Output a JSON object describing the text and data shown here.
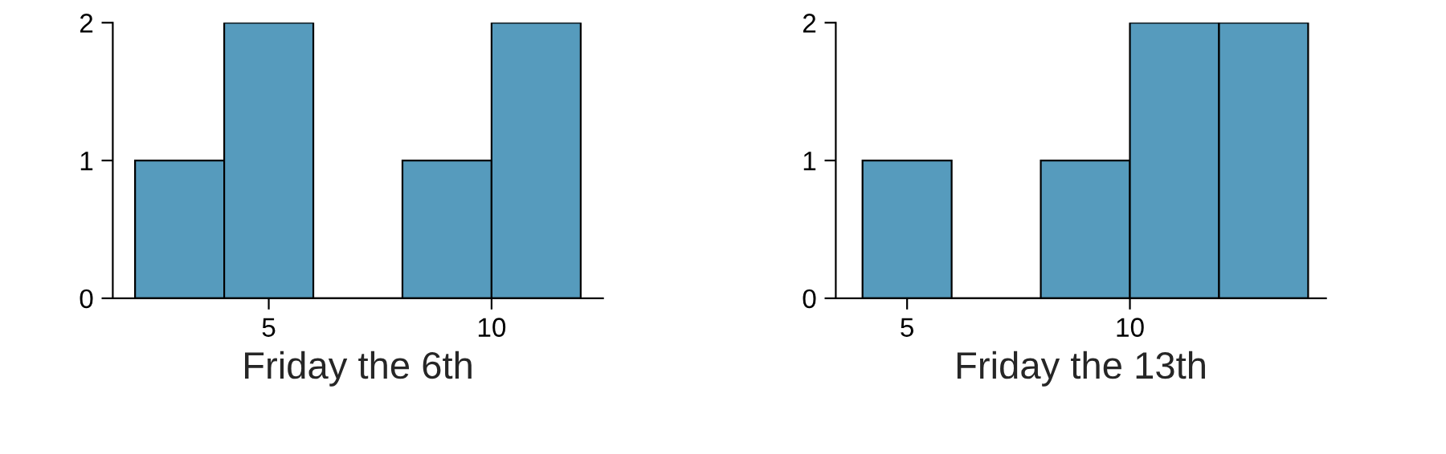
{
  "chart_data": [
    {
      "type": "histogram",
      "xlabel": "Friday the 6th",
      "bins": [
        2,
        4,
        6,
        8,
        10,
        12
      ],
      "values": [
        1,
        2,
        0,
        1,
        2
      ],
      "color": "#569bbd",
      "xlim": [
        1.5,
        12.5
      ],
      "xticks": [
        5,
        10
      ],
      "ylim": [
        0,
        2
      ],
      "yticks": [
        0,
        1,
        2
      ],
      "grid": false
    },
    {
      "type": "histogram",
      "xlabel": "Friday the 13th",
      "bins": [
        4,
        6,
        8,
        10,
        12,
        14
      ],
      "values": [
        1,
        0,
        1,
        2,
        2
      ],
      "color": "#569bbd",
      "xlim": [
        3.4,
        14.4
      ],
      "xticks": [
        5,
        10
      ],
      "ylim": [
        0,
        2
      ],
      "yticks": [
        0,
        1,
        2
      ],
      "grid": false
    }
  ]
}
